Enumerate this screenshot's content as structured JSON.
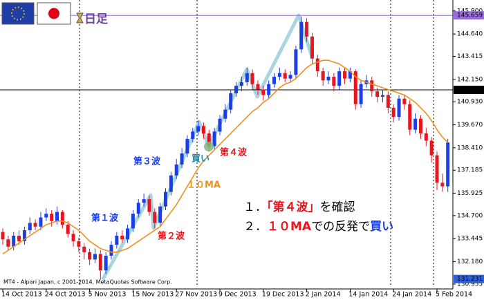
{
  "chart_data": {
    "type": "candlestick",
    "timeframe": "日足",
    "categories": [
      "14 Oct 2013",
      null,
      null,
      null,
      null,
      null,
      null,
      null,
      "24 Oct 2013",
      null,
      null,
      null,
      null,
      null,
      null,
      null,
      "5 Nov 2013",
      null,
      null,
      null,
      null,
      null,
      null,
      null,
      "15 Nov 2013",
      null,
      null,
      null,
      null,
      null,
      null,
      null,
      "27 Nov 2013",
      null,
      null,
      null,
      null,
      null,
      null,
      null,
      "9 Dec 2013",
      null,
      null,
      null,
      null,
      null,
      null,
      null,
      "19 Dec 2013",
      null,
      null,
      null,
      null,
      null,
      null,
      null,
      "2 Jan 2014",
      null,
      null,
      null,
      null,
      null,
      null,
      null,
      "14 Jan 2014",
      null,
      null,
      null,
      null,
      null,
      null,
      null,
      "24 Jan 2014",
      null,
      null,
      null,
      null,
      null,
      null,
      null,
      "5 Feb 2014",
      null,
      null
    ],
    "open": [
      133.8,
      133.4,
      133.0,
      133.6,
      133.3,
      133.9,
      134.3,
      134.1,
      134.6,
      134.8,
      134.4,
      134.9,
      134.2,
      133.7,
      133.3,
      133.0,
      132.7,
      132.3,
      132.6,
      131.7,
      132.5,
      133.1,
      133.6,
      133.4,
      134.0,
      134.8,
      135.4,
      135.6,
      134.9,
      134.3,
      135.2,
      136.0,
      136.9,
      137.5,
      138.1,
      138.9,
      139.3,
      139.6,
      139.2,
      138.5,
      139.3,
      140.0,
      140.5,
      141.4,
      141.8,
      142.0,
      142.5,
      141.9,
      141.6,
      141.3,
      141.9,
      142.3,
      142.5,
      142.2,
      142.4,
      143.8,
      145.3,
      144.5,
      143.3,
      142.6,
      142.1,
      142.3,
      141.8,
      142.6,
      142.2,
      142.6,
      140.8,
      141.9,
      142.1,
      141.5,
      141.2,
      141.3,
      140.6,
      140.1,
      141.1,
      140.8,
      139.4,
      140.0,
      139.2,
      138.8,
      138.0,
      136.5,
      136.3
    ],
    "high": [
      134.0,
      133.6,
      133.8,
      133.9,
      134.1,
      134.6,
      134.5,
      134.9,
      135.1,
      135.0,
      135.2,
      135.0,
      134.4,
      133.9,
      133.5,
      133.2,
      132.9,
      132.9,
      132.8,
      132.7,
      133.3,
      133.8,
      133.9,
      134.2,
      135.0,
      135.6,
      135.9,
      135.8,
      135.1,
      135.4,
      136.2,
      137.1,
      137.8,
      138.4,
      139.1,
      139.5,
      139.9,
      139.8,
      139.4,
      139.5,
      140.2,
      140.8,
      141.6,
      142.0,
      142.3,
      142.8,
      142.7,
      142.1,
      141.8,
      142.1,
      142.5,
      142.8,
      142.7,
      142.6,
      144.0,
      145.6,
      145.5,
      144.7,
      143.5,
      142.8,
      142.6,
      142.5,
      142.8,
      142.8,
      142.8,
      142.7,
      142.1,
      142.4,
      142.3,
      141.7,
      141.6,
      141.5,
      140.8,
      141.3,
      141.3,
      141.0,
      140.3,
      140.2,
      139.5,
      139.0,
      138.2,
      137.0,
      138.9
    ],
    "low": [
      133.1,
      132.8,
      132.8,
      133.1,
      133.1,
      133.7,
      133.9,
      133.9,
      134.4,
      134.1,
      134.2,
      134.0,
      133.5,
      133.0,
      132.7,
      132.3,
      132.0,
      132.1,
      131.2,
      131.5,
      132.3,
      132.9,
      133.2,
      133.2,
      133.8,
      134.6,
      135.2,
      134.7,
      134.0,
      134.1,
      135.0,
      135.8,
      136.7,
      137.3,
      137.9,
      138.7,
      139.1,
      138.9,
      138.2,
      138.3,
      139.1,
      139.8,
      140.3,
      141.2,
      141.5,
      141.8,
      141.6,
      141.3,
      141.0,
      141.1,
      141.7,
      142.1,
      142.0,
      142.0,
      142.2,
      143.6,
      144.2,
      143.0,
      142.3,
      141.8,
      141.9,
      141.5,
      141.6,
      141.9,
      142.0,
      140.5,
      140.6,
      141.7,
      141.2,
      140.9,
      140.9,
      140.3,
      139.8,
      139.9,
      140.5,
      139.1,
      139.2,
      138.9,
      138.5,
      137.6,
      136.1,
      136.0,
      136.0
    ],
    "close": [
      133.4,
      133.0,
      133.6,
      133.3,
      133.9,
      134.3,
      134.1,
      134.6,
      134.8,
      134.4,
      134.9,
      134.2,
      133.7,
      133.3,
      133.0,
      132.7,
      132.3,
      132.6,
      131.7,
      132.5,
      133.1,
      133.6,
      133.4,
      134.0,
      134.8,
      135.4,
      135.6,
      134.9,
      134.3,
      135.2,
      136.0,
      136.9,
      137.5,
      138.1,
      138.9,
      139.3,
      139.6,
      139.2,
      138.5,
      139.3,
      140.0,
      140.5,
      141.4,
      141.8,
      142.0,
      142.5,
      141.9,
      141.6,
      141.3,
      141.9,
      142.3,
      142.5,
      142.2,
      142.4,
      143.8,
      145.3,
      144.5,
      143.3,
      142.6,
      142.1,
      142.3,
      141.8,
      142.6,
      142.2,
      142.6,
      140.8,
      141.9,
      142.1,
      141.5,
      141.2,
      141.3,
      140.6,
      140.1,
      141.1,
      140.8,
      139.4,
      140.0,
      139.2,
      138.8,
      138.0,
      136.5,
      136.3,
      138.7
    ],
    "up_color": "#1b3fe6",
    "down_color": "#e8141e",
    "ma": {
      "color": "#f0901c",
      "values": [
        132.6,
        132.8,
        133.0,
        133.2,
        133.4,
        133.6,
        133.8,
        134.0,
        134.2,
        134.3,
        134.4,
        134.4,
        134.3,
        134.1,
        133.9,
        133.6,
        133.3,
        133.1,
        132.9,
        132.8,
        132.7,
        132.7,
        132.8,
        132.9,
        133.1,
        133.3,
        133.5,
        133.7,
        133.9,
        134.1,
        134.5,
        134.9,
        135.3,
        135.8,
        136.3,
        136.8,
        137.3,
        137.7,
        138.0,
        138.3,
        138.6,
        138.9,
        139.2,
        139.5,
        139.8,
        140.1,
        140.4,
        140.6,
        140.9,
        141.1,
        141.4,
        141.7,
        141.9,
        142.0,
        142.2,
        142.5,
        142.8,
        143.0,
        143.1,
        143.2,
        143.2,
        143.1,
        143.0,
        142.8,
        142.6,
        142.3,
        142.1,
        142.0,
        141.9,
        141.8,
        141.7,
        141.6,
        141.5,
        141.4,
        141.3,
        141.1,
        140.9,
        140.6,
        140.3,
        139.9,
        139.4,
        139.0,
        138.7
      ]
    },
    "ylim": [
      130.8,
      146.5
    ],
    "yticks": [
      130.955,
      {
        "value": 132.18,
        "label": "132.180"
      },
      133.445,
      {
        "value": 134.7,
        "label": "134.700"
      },
      135.925,
      137.185,
      {
        "value": 138.41,
        "label": "138.410"
      },
      {
        "value": 139.67,
        "label": "139.670"
      },
      {
        "value": 140.93,
        "label": "140.930"
      },
      {
        "value": 142.15,
        "label": "142.150"
      },
      143.415,
      {
        "value": 144.64,
        "label": "144.640"
      },
      {
        "value": 145.9,
        "label": "145.900"
      }
    ],
    "hlines": [
      {
        "value": 145.659,
        "color": "#9a6ae0"
      },
      {
        "value": 141.581,
        "color": "#000000"
      }
    ],
    "bid": {
      "value": 131.231,
      "color": "#2f5fd0"
    },
    "annotations": [
      {
        "text": "第１波",
        "color": "#1b3fe6"
      },
      {
        "text": "第２波",
        "color": "#e8141e"
      },
      {
        "text": "第３波",
        "color": "#1b3fe6"
      },
      {
        "text": "第４波",
        "color": "#e8141e"
      },
      {
        "text": "買い",
        "color": "#1e8aa8"
      },
      {
        "text": "１０MA",
        "color": "#f0901c"
      }
    ],
    "notes": [
      [
        {
          "text": "１．",
          "color": "#000000"
        },
        {
          "text": "「第４波」",
          "color": "#e8141e"
        },
        {
          "text": "を確認",
          "color": "#000000"
        }
      ],
      [
        {
          "text": "２．",
          "color": "#000000"
        },
        {
          "text": "１０MA",
          "color": "#e8141e"
        },
        {
          "text": "での反発で",
          "color": "#000000"
        },
        {
          "text": "買い",
          "color": "#1b3fe6"
        }
      ]
    ],
    "footer": "MT4 - Alpari Japan, c 2001-2014, MetaQuotes Software Corp."
  }
}
